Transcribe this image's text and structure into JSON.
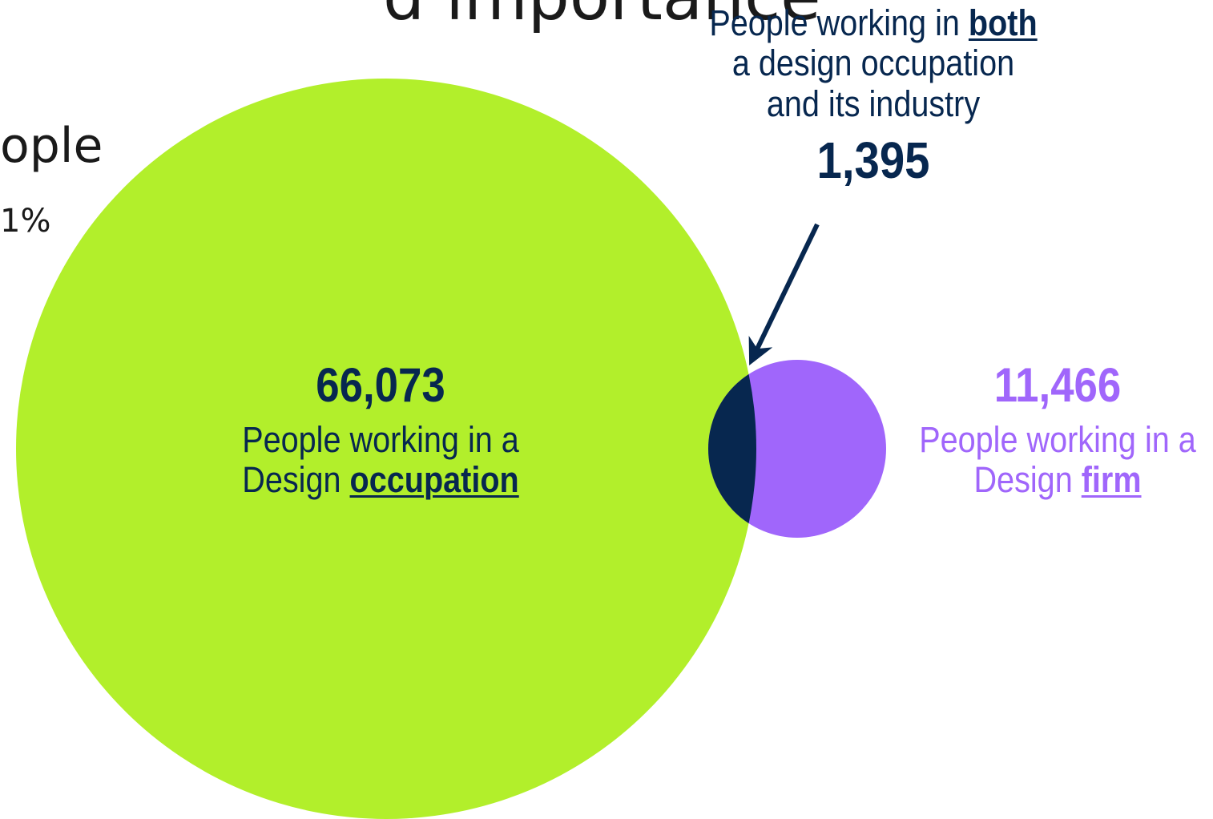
{
  "slide_fragments": {
    "title_partial": "d importance",
    "line1_partial": "ople",
    "line2_partial": "1%"
  },
  "venn": {
    "occupation": {
      "value": "66,073",
      "text_prefix": "People working in a Design",
      "keyword": "occupation",
      "color": "#b2ef2b",
      "text_color": "#07274f"
    },
    "firm": {
      "value": "11,466",
      "text_prefix": "People working in a Design",
      "keyword": "firm",
      "color": "#a066fb",
      "text_color": "#a066fb"
    },
    "both": {
      "value": "1,395",
      "text_line1_prefix": "People working in",
      "keyword": "both",
      "text_line2": "a design occupation",
      "text_line3": "and its industry",
      "color": "#07274f"
    }
  }
}
